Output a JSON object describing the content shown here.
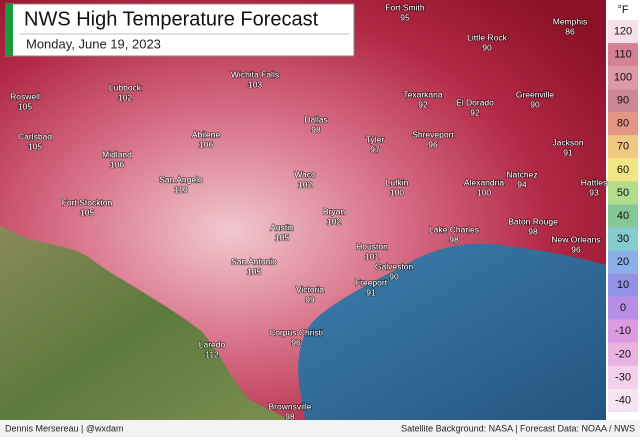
{
  "header": {
    "title": "NWS High Temperature Forecast",
    "subtitle": "Monday, June 19, 2023"
  },
  "cities": [
    {
      "name": "Fort Smith",
      "value": 95
    },
    {
      "name": "Little Rock",
      "value": 90
    },
    {
      "name": "Memphis",
      "value": 86
    },
    {
      "name": "Roswell",
      "value": 105
    },
    {
      "name": "Lubbock",
      "value": 102
    },
    {
      "name": "Wichita Falls",
      "value": 103
    },
    {
      "name": "Texarkana",
      "value": 92
    },
    {
      "name": "El Dorado",
      "value": 92
    },
    {
      "name": "Greenville",
      "value": 90
    },
    {
      "name": "Carlsbad",
      "value": 105
    },
    {
      "name": "Abilene",
      "value": 106
    },
    {
      "name": "Dallas",
      "value": 98
    },
    {
      "name": "Tyler",
      "value": 97
    },
    {
      "name": "Shreveport",
      "value": 96
    },
    {
      "name": "Jackson",
      "value": 91
    },
    {
      "name": "Midland",
      "value": 106
    },
    {
      "name": "San Angelo",
      "value": 110
    },
    {
      "name": "Waco",
      "value": 102
    },
    {
      "name": "Lufkin",
      "value": 100
    },
    {
      "name": "Alexandria",
      "value": 100
    },
    {
      "name": "Natchez",
      "value": 94
    },
    {
      "name": "Hattles",
      "value": 93
    },
    {
      "name": "Fort Stockton",
      "value": 105
    },
    {
      "name": "Bryan",
      "value": 102
    },
    {
      "name": "Austin",
      "value": 105
    },
    {
      "name": "Lake Charles",
      "value": 98
    },
    {
      "name": "Baton Rouge",
      "value": 98
    },
    {
      "name": "New Orleans",
      "value": 96
    },
    {
      "name": "Houston",
      "value": 101
    },
    {
      "name": "San Antonio",
      "value": 105
    },
    {
      "name": "Galveston",
      "value": 90
    },
    {
      "name": "Freeport",
      "value": 91
    },
    {
      "name": "Victoria",
      "value": 99
    },
    {
      "name": "Corpus Christi",
      "value": 96
    },
    {
      "name": "Laredo",
      "value": 112
    },
    {
      "name": "Brownsville",
      "value": 98
    }
  ],
  "legend": {
    "unit": "°F",
    "ticks": [
      120,
      110,
      100,
      90,
      80,
      70,
      60,
      50,
      40,
      30,
      20,
      10,
      0,
      -10,
      -20,
      -30,
      -40
    ]
  },
  "footer": {
    "author": "Dennis Mersereau | @wxdam",
    "credits": "Satellite Background: NASA | Forecast Data: NOAA / NWS"
  }
}
